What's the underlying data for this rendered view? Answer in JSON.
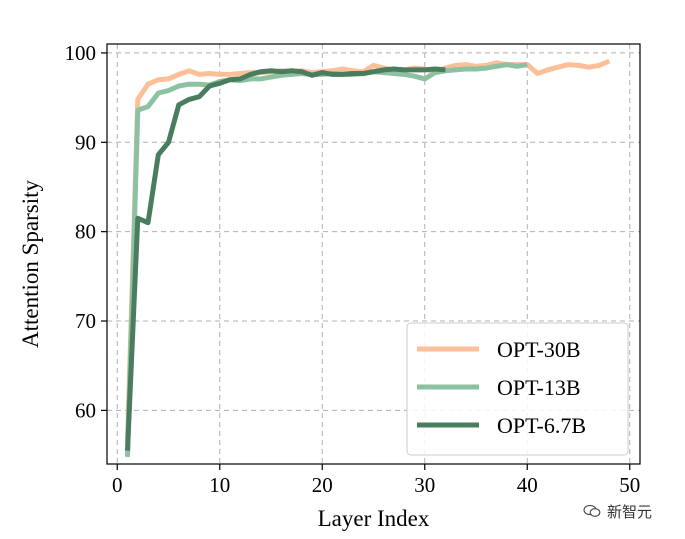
{
  "chart_data": {
    "type": "line",
    "xlabel": "Layer Index",
    "ylabel": "Attention Sparsity",
    "xlim": [
      -1,
      51
    ],
    "ylim": [
      54,
      101
    ],
    "xticks": [
      0,
      10,
      20,
      30,
      40,
      50
    ],
    "yticks": [
      60,
      70,
      80,
      90,
      100
    ],
    "grid": true,
    "legend_position": "lower-right",
    "series": [
      {
        "name": "OPT-30B",
        "color": "#fdbf97",
        "x": [
          1,
          2,
          3,
          4,
          5,
          6,
          7,
          8,
          9,
          10,
          11,
          12,
          13,
          14,
          15,
          16,
          17,
          18,
          19,
          20,
          21,
          22,
          23,
          24,
          25,
          26,
          27,
          28,
          29,
          30,
          31,
          32,
          33,
          34,
          35,
          36,
          37,
          38,
          39,
          40,
          41,
          42,
          43,
          44,
          45,
          46,
          47,
          48
        ],
        "y": [
          56.5,
          94.8,
          96.5,
          97.0,
          97.1,
          97.6,
          98.0,
          97.6,
          97.7,
          97.6,
          97.6,
          97.7,
          97.8,
          97.8,
          97.9,
          98.0,
          97.9,
          98.0,
          97.8,
          97.9,
          98.0,
          98.2,
          98.0,
          97.9,
          98.6,
          98.3,
          98.1,
          98.1,
          98.3,
          98.2,
          97.9,
          98.3,
          98.6,
          98.7,
          98.5,
          98.6,
          98.9,
          98.7,
          98.7,
          98.7,
          97.7,
          98.1,
          98.4,
          98.7,
          98.6,
          98.4,
          98.6,
          99.1
        ]
      },
      {
        "name": "OPT-13B",
        "color": "#8cc2a2",
        "x": [
          1,
          2,
          3,
          4,
          5,
          6,
          7,
          8,
          9,
          10,
          11,
          12,
          13,
          14,
          15,
          16,
          17,
          18,
          19,
          20,
          21,
          22,
          23,
          24,
          25,
          26,
          27,
          28,
          29,
          30,
          31,
          32,
          33,
          34,
          35,
          36,
          37,
          38,
          39,
          40
        ],
        "y": [
          54.8,
          93.6,
          94.0,
          95.5,
          95.8,
          96.3,
          96.5,
          96.5,
          96.4,
          96.8,
          97.0,
          96.9,
          97.1,
          97.1,
          97.3,
          97.5,
          97.6,
          97.7,
          97.6,
          97.6,
          97.7,
          97.6,
          97.6,
          97.7,
          97.9,
          97.8,
          97.7,
          97.6,
          97.4,
          97.1,
          97.8,
          98.0,
          98.1,
          98.2,
          98.2,
          98.3,
          98.5,
          98.7,
          98.5,
          98.7
        ]
      },
      {
        "name": "OPT-6.7B",
        "color": "#4a7d5d",
        "x": [
          1,
          2,
          3,
          4,
          5,
          6,
          7,
          8,
          9,
          10,
          11,
          12,
          13,
          14,
          15,
          16,
          17,
          18,
          19,
          20,
          21,
          22,
          23,
          24,
          25,
          26,
          27,
          28,
          29,
          30,
          31,
          32
        ],
        "y": [
          55.5,
          81.5,
          81.0,
          88.6,
          90.0,
          94.2,
          94.8,
          95.1,
          96.3,
          96.6,
          97.0,
          97.1,
          97.6,
          97.9,
          98.0,
          97.9,
          98.0,
          97.9,
          97.5,
          97.8,
          97.6,
          97.6,
          97.7,
          97.7,
          97.9,
          98.1,
          98.2,
          98.1,
          98.1,
          98.1,
          98.2,
          98.1
        ]
      }
    ]
  },
  "watermark": {
    "text": "新智元",
    "icon": "wechat-icon"
  }
}
